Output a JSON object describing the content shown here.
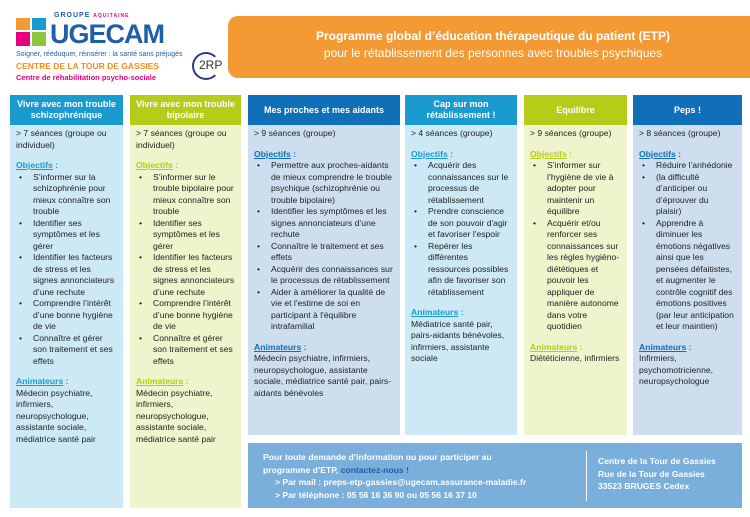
{
  "logo": {
    "groupe": "GROUPE",
    "region": "AQUITAINE",
    "brand": "UGECAM",
    "slogan": "Soigner, rééduquer, réinsérer : la santé sans préjugés",
    "centre": "CENTRE DE LA TOUR DE GASSIES",
    "rehab": "Centre de réhabilitation psycho-sociale",
    "badge": "2RP"
  },
  "banner": {
    "title": "Programme global d’éducation thérapeutique du patient (ETP)",
    "subtitle": "pour le rétablissement des personnes avec troubles psychiques"
  },
  "colors": {
    "blue_light_header": "#1a9bd0",
    "blue_light_body": "#cde9f6",
    "green_header": "#b5cc18",
    "green_body": "#eef4cc",
    "blue_dark_header": "#0f6fb8",
    "blue_dark_body": "#cddfef",
    "banner": "#f39a35",
    "footer": "#7aaedb"
  },
  "programs": [
    {
      "title": "Vivre avec mon trouble schizophrénique",
      "sessions": "> 7 séances (groupe ou individuel)",
      "objectives_label": "Objectifs",
      "objectives": [
        "S’informer sur la schizophrénie pour mieux connaître son trouble",
        "Identifier ses symptômes et les gérer",
        "Identifier les facteurs de stress et les signes annonciateurs d’une rechute",
        "Comprendre l’intérêt d’une bonne hygiène de vie",
        "Connaître et gérer son traitement et ses effets"
      ],
      "animators_label": "Animateurs",
      "animators": "Médecin psychiatre, infirmiers, neuropsychologue, assistante sociale, médiatrice santé pair"
    },
    {
      "title": "Vivre avec mon trouble bipolaire",
      "sessions": "> 7 séances (groupe ou individuel)",
      "objectives_label": "Objectifs",
      "objectives": [
        "S’informer sur le trouble bipolaire pour mieux connaître son trouble",
        "Identifier ses symptômes et les gérer",
        "Identifier les facteurs de stress et les signes annonciateurs d’une rechute",
        "Comprendre l’intérêt d’une bonne hygiène de vie",
        "Connaître et gérer son traitement et ses effets"
      ],
      "animators_label": "Animateurs",
      "animators": "Médecin psychiatre, infirmiers, neuropsychologue, assistante sociale, médiatrice santé pair"
    },
    {
      "title": "Mes proches et mes aidants",
      "sessions": "> 9 séances (groupe)",
      "objectives_label": "Objectifs",
      "objectives": [
        "Permettre aux proches-aidants de mieux comprendre le trouble psychique (schizophrénie ou trouble bipolaire)",
        "Identifier les symptômes et les signes annonciateurs d’une rechute",
        "Connaître le traitement et ses effets",
        "Acquérir des connaissances sur le processus de rétablissement",
        "Aider à améliorer la qualité de vie et l'estime de soi en participant à l'équilibre intrafamilial"
      ],
      "animators_label": "Animateurs",
      "animators": "Médecin psychiatre, infirmiers, neuropsychologue, assistante sociale, médiatrice santé pair, pairs-aidants bénévoles"
    },
    {
      "title": "Cap sur mon rétablissement !",
      "sessions": "> 4 séances (groupe)",
      "objectives_label": "Objectifs",
      "objectives": [
        "Acquérir des connaissances sur le processus de rétablissement",
        "Prendre conscience de son pouvoir d'agir et favoriser l'espoir",
        "Repérer les différentes ressources possibles afin de favoriser son rétablissement"
      ],
      "animators_label": "Animateurs",
      "animators": "Médiatrice santé pair, pairs-aidants bénévoles, infirmiers, assistante sociale"
    },
    {
      "title": "Equilibre",
      "sessions": "> 9 séances (groupe)",
      "objectives_label": "Objectifs",
      "objectives": [
        "S’informer sur l’hygiène de vie à adopter pour maintenir un équilibre",
        "Acquérir et/ou renforcer ses connaissances sur les règles hygiéno-diététiques et pouvoir les appliquer de manière autonome dans votre quotidien"
      ],
      "animators_label": "Animateurs",
      "animators": "Diététicienne, infirmiers"
    },
    {
      "title": "Peps !",
      "sessions": "> 8 séances (groupe)",
      "objectives_label": "Objectifs",
      "objectives": [
        "Réduire l’anhédonie",
        "(la difficulté d’anticiper ou d’éprouver du plaisir)",
        "Apprendre à diminuer les émotions négatives ainsi que les pensées défaitistes, et augmenter le contrôle cognitif des émotions positives (par leur anticipation et leur maintien)"
      ],
      "animators_label": "Animateurs",
      "animators": "Infirmiers, psychomotricienne, neuropsychologue"
    }
  ],
  "footer": {
    "line1": "Pour toute demande d’information ou pour participer au",
    "line2": "programme d’ETP,",
    "contact": "contactez-nous !",
    "mail": "> Par mail : preps-etp-gassies@ugecam.assurance-maladie.fr",
    "phone": "> Par téléphone : 05 56 16 36 90 ou 05 56 16 37 10",
    "address": [
      "Centre de la Tour de Gassies",
      "Rue de la Tour de Gassies",
      "33523 BRUGES Cedex"
    ]
  }
}
